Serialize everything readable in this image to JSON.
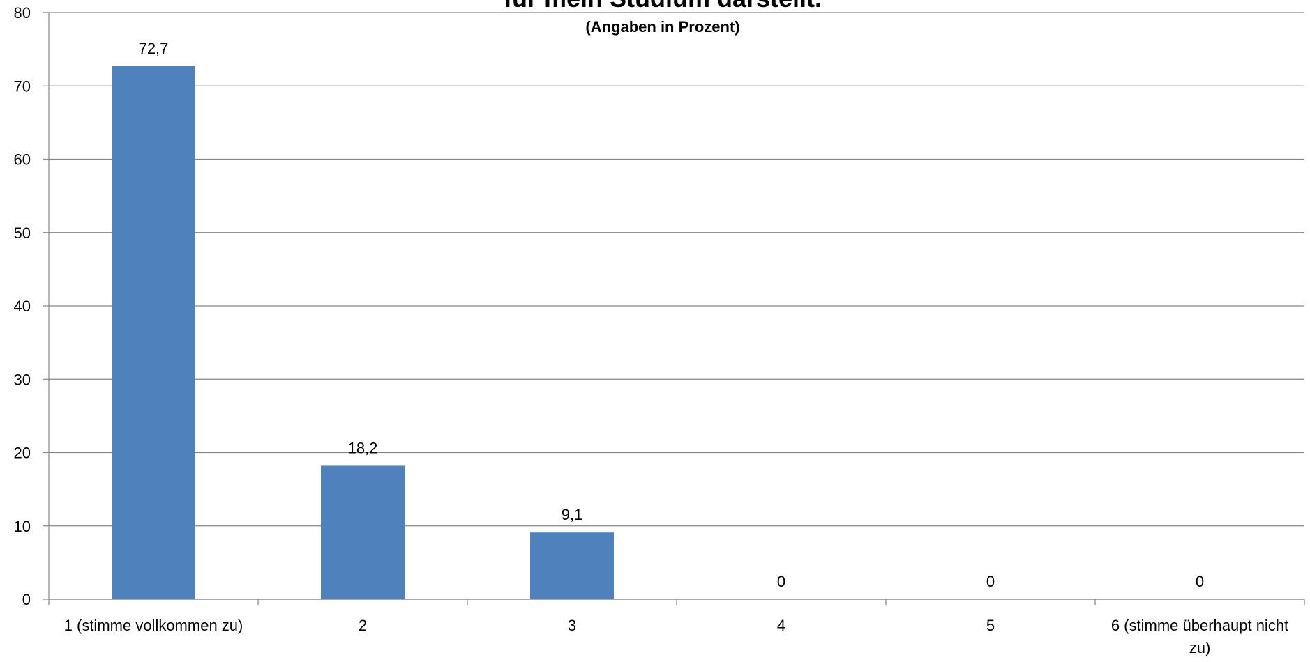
{
  "chart_data": {
    "type": "bar",
    "title": "für mein Studium darstellt.",
    "subtitle": "(Angaben in Prozent)",
    "categories": [
      "1 (stimme vollkommen zu)",
      "2",
      "3",
      "4",
      "5",
      "6 (stimme überhaupt nicht zu)"
    ],
    "values": [
      72.7,
      18.2,
      9.1,
      0,
      0,
      0
    ],
    "data_labels": [
      "72,7",
      "18,2",
      "9,1",
      "0",
      "0",
      "0"
    ],
    "ylim": [
      0,
      80
    ],
    "yticks": [
      0,
      10,
      20,
      30,
      40,
      50,
      60,
      70,
      80
    ],
    "grid": true,
    "legend": "none",
    "bar_color": "#4F81BD",
    "xlabel": "",
    "ylabel": ""
  }
}
